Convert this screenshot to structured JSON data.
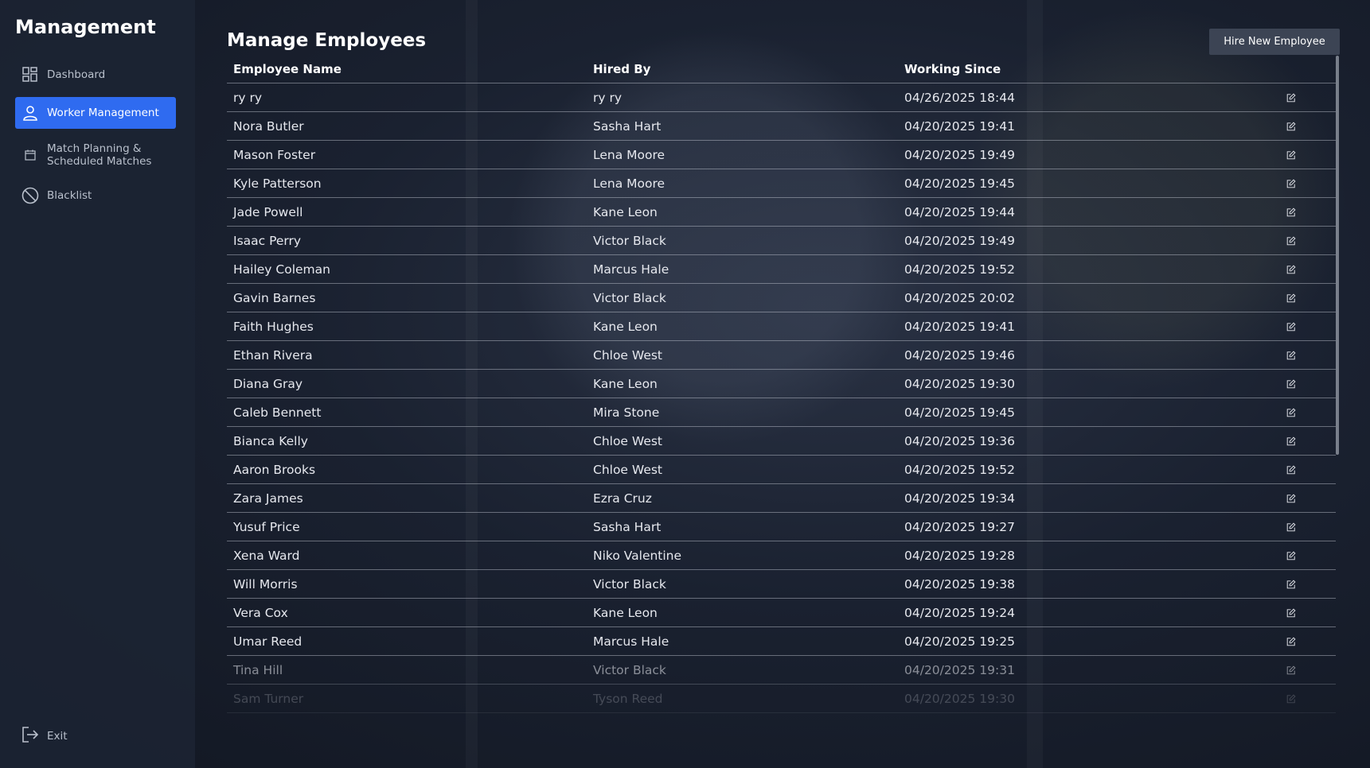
{
  "sidebar": {
    "title": "Management",
    "items": [
      {
        "label": "Dashboard",
        "icon": "dashboard-icon"
      },
      {
        "label": "Worker Management",
        "icon": "user-icon",
        "active": true
      },
      {
        "label": "Match Planning & Scheduled Matches",
        "icon": "calendar-icon"
      },
      {
        "label": "Blacklist",
        "icon": "ban-icon"
      }
    ],
    "exit_label": "Exit"
  },
  "main": {
    "title": "Manage Employees",
    "hire_button_label": "Hire New Employee",
    "columns": [
      "Employee Name",
      "Hired By",
      "Working Since"
    ],
    "rows": [
      {
        "name": "ry ry",
        "hired_by": "ry ry",
        "since": "04/26/2025 18:44"
      },
      {
        "name": "Nora Butler",
        "hired_by": "Sasha Hart",
        "since": "04/20/2025 19:41"
      },
      {
        "name": "Mason Foster",
        "hired_by": "Lena Moore",
        "since": "04/20/2025 19:49"
      },
      {
        "name": "Kyle Patterson",
        "hired_by": "Lena Moore",
        "since": "04/20/2025 19:45"
      },
      {
        "name": "Jade Powell",
        "hired_by": "Kane Leon",
        "since": "04/20/2025 19:44"
      },
      {
        "name": "Isaac Perry",
        "hired_by": "Victor Black",
        "since": "04/20/2025 19:49"
      },
      {
        "name": "Hailey Coleman",
        "hired_by": "Marcus Hale",
        "since": "04/20/2025 19:52"
      },
      {
        "name": "Gavin Barnes",
        "hired_by": "Victor Black",
        "since": "04/20/2025 20:02"
      },
      {
        "name": "Faith Hughes",
        "hired_by": "Kane Leon",
        "since": "04/20/2025 19:41"
      },
      {
        "name": "Ethan Rivera",
        "hired_by": "Chloe West",
        "since": "04/20/2025 19:46"
      },
      {
        "name": "Diana Gray",
        "hired_by": "Kane Leon",
        "since": "04/20/2025 19:30"
      },
      {
        "name": "Caleb Bennett",
        "hired_by": "Mira Stone",
        "since": "04/20/2025 19:45"
      },
      {
        "name": "Bianca Kelly",
        "hired_by": "Chloe West",
        "since": "04/20/2025 19:36"
      },
      {
        "name": "Aaron Brooks",
        "hired_by": "Chloe West",
        "since": "04/20/2025 19:52"
      },
      {
        "name": "Zara James",
        "hired_by": "Ezra Cruz",
        "since": "04/20/2025 19:34"
      },
      {
        "name": "Yusuf Price",
        "hired_by": "Sasha Hart",
        "since": "04/20/2025 19:27"
      },
      {
        "name": "Xena Ward",
        "hired_by": "Niko Valentine",
        "since": "04/20/2025 19:28"
      },
      {
        "name": "Will Morris",
        "hired_by": "Victor Black",
        "since": "04/20/2025 19:38"
      },
      {
        "name": "Vera Cox",
        "hired_by": "Kane Leon",
        "since": "04/20/2025 19:24"
      },
      {
        "name": "Umar Reed",
        "hired_by": "Marcus Hale",
        "since": "04/20/2025 19:25"
      },
      {
        "name": "Tina Hill",
        "hired_by": "Victor Black",
        "since": "04/20/2025 19:31"
      },
      {
        "name": "Sam Turner",
        "hired_by": "Tyson Reed",
        "since": "04/20/2025 19:30"
      }
    ],
    "edit_icon": "edit-icon"
  },
  "colors": {
    "accent": "#2f6bf0",
    "button_bg": "#3c4454",
    "sidebar_bg": "#1c2434"
  }
}
